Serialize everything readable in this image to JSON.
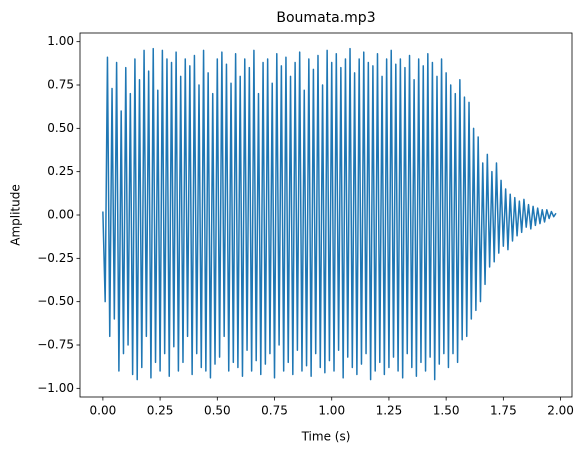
{
  "chart_data": {
    "type": "line",
    "title": "Boumata.mp3",
    "x_label": "Time (s)",
    "y_label": "Amplitude",
    "xlim": [
      -0.1,
      2.05
    ],
    "ylim": [
      -1.05,
      1.05
    ],
    "xticks": [
      {
        "value": 0,
        "label": "0.00"
      },
      {
        "value": 0.25,
        "label": "0.25"
      },
      {
        "value": 0.5,
        "label": "0.50"
      },
      {
        "value": 0.75,
        "label": "0.75"
      },
      {
        "value": 1,
        "label": "1.00"
      },
      {
        "value": 1.25,
        "label": "1.25"
      },
      {
        "value": 1.5,
        "label": "1.50"
      },
      {
        "value": 1.75,
        "label": "1.75"
      },
      {
        "value": 2,
        "label": "2.00"
      }
    ],
    "yticks": [
      {
        "value": -1,
        "label": "−1.00"
      },
      {
        "value": -0.75,
        "label": "−0.75"
      },
      {
        "value": -0.5,
        "label": "−0.50"
      },
      {
        "value": -0.25,
        "label": "−0.25"
      },
      {
        "value": 0,
        "label": "0.00"
      },
      {
        "value": 0.25,
        "label": "0.25"
      },
      {
        "value": 0.5,
        "label": "0.50"
      },
      {
        "value": 0.75,
        "label": "0.75"
      },
      {
        "value": 1,
        "label": "1.00"
      }
    ],
    "grid": false,
    "x": [
      0.0,
      0.01,
      0.02,
      0.03,
      0.04,
      0.05,
      0.06,
      0.07,
      0.08,
      0.09,
      0.1,
      0.11,
      0.12,
      0.13,
      0.14,
      0.15,
      0.16,
      0.17,
      0.18,
      0.19,
      0.2,
      0.21,
      0.22,
      0.23,
      0.24,
      0.25,
      0.26,
      0.27,
      0.28,
      0.29,
      0.3,
      0.31,
      0.32,
      0.33,
      0.34,
      0.35,
      0.36,
      0.37,
      0.38,
      0.39,
      0.4,
      0.41,
      0.42,
      0.43,
      0.44,
      0.45,
      0.46,
      0.47,
      0.48,
      0.49,
      0.5,
      0.51,
      0.52,
      0.53,
      0.54,
      0.55,
      0.56,
      0.57,
      0.58,
      0.59,
      0.6,
      0.61,
      0.62,
      0.63,
      0.64,
      0.65,
      0.66,
      0.67,
      0.68,
      0.69,
      0.7,
      0.71,
      0.72,
      0.73,
      0.74,
      0.75,
      0.76,
      0.77,
      0.78,
      0.79,
      0.8,
      0.81,
      0.82,
      0.83,
      0.84,
      0.85,
      0.86,
      0.87,
      0.88,
      0.89,
      0.9,
      0.91,
      0.92,
      0.93,
      0.94,
      0.95,
      0.96,
      0.97,
      0.98,
      0.99,
      1.0,
      1.01,
      1.02,
      1.03,
      1.04,
      1.05,
      1.06,
      1.07,
      1.08,
      1.09,
      1.1,
      1.11,
      1.12,
      1.13,
      1.14,
      1.15,
      1.16,
      1.17,
      1.18,
      1.19,
      1.2,
      1.21,
      1.22,
      1.23,
      1.24,
      1.25,
      1.26,
      1.27,
      1.28,
      1.29,
      1.3,
      1.31,
      1.32,
      1.33,
      1.34,
      1.35,
      1.36,
      1.37,
      1.38,
      1.39,
      1.4,
      1.41,
      1.42,
      1.43,
      1.44,
      1.45,
      1.46,
      1.47,
      1.48,
      1.49,
      1.5,
      1.51,
      1.52,
      1.53,
      1.54,
      1.55,
      1.56,
      1.57,
      1.58,
      1.59,
      1.6,
      1.61,
      1.62,
      1.63,
      1.64,
      1.65,
      1.66,
      1.67,
      1.68,
      1.69,
      1.7,
      1.71,
      1.72,
      1.73,
      1.74,
      1.75,
      1.76,
      1.77,
      1.78,
      1.79,
      1.8,
      1.81,
      1.82,
      1.83,
      1.84,
      1.85,
      1.86,
      1.87,
      1.88,
      1.89,
      1.9,
      1.91,
      1.92,
      1.93,
      1.94,
      1.95,
      1.96,
      1.97,
      1.98
    ],
    "series": [
      {
        "color": "#1f77b4",
        "values": [
          0.02,
          -0.5,
          0.91,
          -0.7,
          0.73,
          -0.6,
          0.88,
          -0.9,
          0.6,
          -0.8,
          0.85,
          -0.75,
          0.7,
          -0.92,
          0.9,
          -0.95,
          0.78,
          -0.88,
          0.95,
          -0.7,
          0.83,
          -0.94,
          0.96,
          -0.85,
          0.72,
          -0.9,
          0.95,
          -0.8,
          0.9,
          -0.93,
          0.88,
          -0.76,
          0.94,
          -0.9,
          0.8,
          -0.85,
          0.9,
          -0.7,
          0.86,
          -0.92,
          0.92,
          -0.8,
          0.75,
          -0.88,
          0.95,
          -0.9,
          0.82,
          -0.94,
          0.7,
          -0.86,
          0.9,
          -0.82,
          0.94,
          -0.7,
          0.87,
          -0.9,
          0.76,
          -0.85,
          0.93,
          -0.88,
          0.8,
          -0.93,
          0.9,
          -0.78,
          0.85,
          -0.9,
          0.95,
          -0.84,
          0.7,
          -0.92,
          0.88,
          -0.86,
          0.9,
          -0.8,
          0.76,
          -0.94,
          0.93,
          -0.75,
          0.86,
          -0.9,
          0.91,
          -0.85,
          0.8,
          -0.92,
          0.88,
          -0.78,
          0.94,
          -0.9,
          0.72,
          -0.87,
          0.9,
          -0.93,
          0.84,
          -0.8,
          0.92,
          -0.88,
          0.75,
          -0.91,
          0.95,
          -0.84,
          0.88,
          -0.9,
          0.93,
          -0.78,
          0.85,
          -0.94,
          0.9,
          -0.82,
          0.96,
          -0.88,
          0.82,
          -0.92,
          0.9,
          -0.86,
          0.94,
          -0.8,
          0.88,
          -0.95,
          0.86,
          -0.9,
          0.93,
          -0.85,
          0.8,
          -0.92,
          0.9,
          -0.88,
          0.95,
          -0.82,
          0.87,
          -0.9,
          0.9,
          -0.94,
          0.85,
          -0.8,
          0.92,
          -0.88,
          0.78,
          -0.93,
          0.9,
          -0.85,
          0.86,
          -0.9,
          0.93,
          -0.82,
          0.88,
          -0.95,
          0.8,
          -0.86,
          0.9,
          -0.8,
          0.82,
          -0.88,
          0.75,
          -0.8,
          0.7,
          -0.85,
          0.78,
          -0.72,
          0.68,
          -0.7,
          0.65,
          -0.6,
          0.5,
          -0.55,
          0.45,
          -0.5,
          0.3,
          -0.4,
          0.35,
          -0.3,
          0.25,
          -0.27,
          0.3,
          -0.22,
          0.2,
          -0.18,
          0.15,
          -0.2,
          0.12,
          -0.15,
          0.1,
          -0.12,
          0.08,
          -0.1,
          0.09,
          -0.07,
          0.06,
          -0.08,
          0.05,
          -0.06,
          0.04,
          -0.05,
          0.03,
          -0.04,
          0.03,
          -0.02,
          0.02,
          -0.01,
          0.01
        ]
      }
    ]
  }
}
